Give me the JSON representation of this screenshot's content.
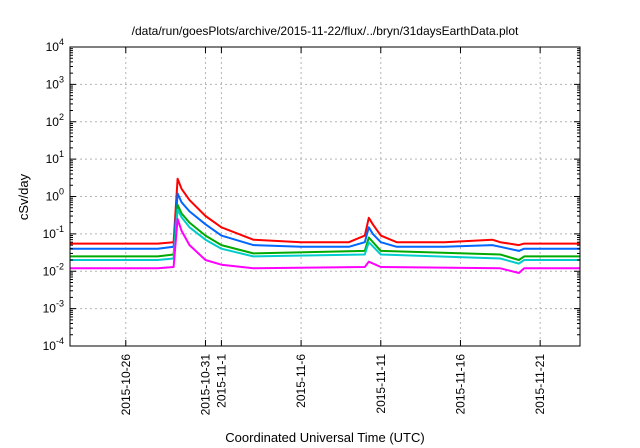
{
  "chart_data": {
    "type": "line",
    "title": "/data/run/goesPlots/archive/2015-11-22/flux/../bryn/31daysEarthData.plot",
    "xlabel": "Coordinated Universal Time (UTC)",
    "ylabel": "cSv/day",
    "yscale": "log",
    "ylim": [
      0.0001,
      10000
    ],
    "xlim": [
      "2015-10-22T12:00",
      "2015-11-23T12:00"
    ],
    "grid": true,
    "y_ticks": [
      {
        "base": "10",
        "exp": "-4",
        "value": 0.0001
      },
      {
        "base": "10",
        "exp": "-3",
        "value": 0.001
      },
      {
        "base": "10",
        "exp": "-2",
        "value": 0.01
      },
      {
        "base": "10",
        "exp": "-1",
        "value": 0.1
      },
      {
        "base": "10",
        "exp": "0",
        "value": 1
      },
      {
        "base": "10",
        "exp": "1",
        "value": 10
      },
      {
        "base": "10",
        "exp": "2",
        "value": 100
      },
      {
        "base": "10",
        "exp": "3",
        "value": 1000
      },
      {
        "base": "10",
        "exp": "4",
        "value": 10000
      }
    ],
    "x_ticks": [
      {
        "label": "2015-10-26",
        "date": "2015-10-26"
      },
      {
        "label": "2015-10-31",
        "date": "2015-10-31"
      },
      {
        "label": "2015-11-1",
        "date": "2015-11-01"
      },
      {
        "label": "2015-11-6",
        "date": "2015-11-06"
      },
      {
        "label": "2015-11-11",
        "date": "2015-11-11"
      },
      {
        "label": "2015-11-16",
        "date": "2015-11-16"
      },
      {
        "label": "2015-11-21",
        "date": "2015-11-21"
      }
    ],
    "series": [
      {
        "color": "#ff0000",
        "x": [
          "2015-10-22T12:00",
          "2015-10-25",
          "2015-10-28",
          "2015-10-29",
          "2015-10-29T06:00",
          "2015-10-29T12:00",
          "2015-10-30",
          "2015-10-31",
          "2015-11-01",
          "2015-11-03",
          "2015-11-06",
          "2015-11-09",
          "2015-11-10",
          "2015-11-10T06:00",
          "2015-11-10T12:00",
          "2015-11-11",
          "2015-11-12",
          "2015-11-15",
          "2015-11-18",
          "2015-11-18T12:00",
          "2015-11-19T16:00",
          "2015-11-20",
          "2015-11-23T12:00"
        ],
        "y": [
          0.055,
          0.055,
          0.055,
          0.06,
          3.0,
          1.6,
          0.8,
          0.3,
          0.15,
          0.07,
          0.06,
          0.06,
          0.09,
          0.27,
          0.18,
          0.09,
          0.06,
          0.06,
          0.07,
          0.06,
          0.05,
          0.055,
          0.055
        ]
      },
      {
        "color": "#0066ff",
        "x": [
          "2015-10-22T12:00",
          "2015-10-25",
          "2015-10-28",
          "2015-10-29",
          "2015-10-29T06:00",
          "2015-10-29T12:00",
          "2015-10-30",
          "2015-10-31",
          "2015-11-01",
          "2015-11-03",
          "2015-11-06",
          "2015-11-09",
          "2015-11-10",
          "2015-11-10T06:00",
          "2015-11-10T12:00",
          "2015-11-11",
          "2015-11-12",
          "2015-11-15",
          "2015-11-18",
          "2015-11-18T12:00",
          "2015-11-19T16:00",
          "2015-11-20",
          "2015-11-23T12:00"
        ],
        "y": [
          0.04,
          0.04,
          0.04,
          0.045,
          1.2,
          0.7,
          0.4,
          0.18,
          0.09,
          0.05,
          0.045,
          0.045,
          0.06,
          0.15,
          0.1,
          0.06,
          0.045,
          0.045,
          0.05,
          0.045,
          0.035,
          0.04,
          0.04
        ]
      },
      {
        "color": "#00aa00",
        "x": [
          "2015-10-22T12:00",
          "2015-10-28",
          "2015-10-29",
          "2015-10-29T06:00",
          "2015-10-29T12:00",
          "2015-10-30",
          "2015-10-31",
          "2015-11-01",
          "2015-11-03",
          "2015-11-10",
          "2015-11-10T06:00",
          "2015-11-11",
          "2015-11-18T12:00",
          "2015-11-19T16:00",
          "2015-11-20",
          "2015-11-23T12:00"
        ],
        "y": [
          0.025,
          0.025,
          0.028,
          0.6,
          0.35,
          0.2,
          0.09,
          0.05,
          0.03,
          0.035,
          0.08,
          0.035,
          0.028,
          0.02,
          0.025,
          0.025
        ]
      },
      {
        "color": "#00cccc",
        "x": [
          "2015-10-22T12:00",
          "2015-10-28",
          "2015-10-29",
          "2015-10-29T06:00",
          "2015-10-29T12:00",
          "2015-10-30",
          "2015-10-31",
          "2015-11-01",
          "2015-11-03",
          "2015-11-10",
          "2015-11-10T06:00",
          "2015-11-11",
          "2015-11-18T12:00",
          "2015-11-19T16:00",
          "2015-11-20",
          "2015-11-23T12:00"
        ],
        "y": [
          0.02,
          0.02,
          0.022,
          0.45,
          0.28,
          0.15,
          0.07,
          0.04,
          0.025,
          0.028,
          0.06,
          0.028,
          0.022,
          0.016,
          0.02,
          0.02
        ]
      },
      {
        "color": "#ff00ff",
        "x": [
          "2015-10-22T12:00",
          "2015-10-28",
          "2015-10-29",
          "2015-10-29T06:00",
          "2015-10-29T12:00",
          "2015-10-30",
          "2015-10-31",
          "2015-11-01",
          "2015-11-03",
          "2015-11-10",
          "2015-11-10T06:00",
          "2015-11-11",
          "2015-11-18T12:00",
          "2015-11-19T16:00",
          "2015-11-20",
          "2015-11-23T12:00"
        ],
        "y": [
          0.012,
          0.012,
          0.013,
          0.25,
          0.12,
          0.05,
          0.02,
          0.015,
          0.012,
          0.013,
          0.018,
          0.013,
          0.012,
          0.009,
          0.012,
          0.012
        ]
      }
    ]
  }
}
